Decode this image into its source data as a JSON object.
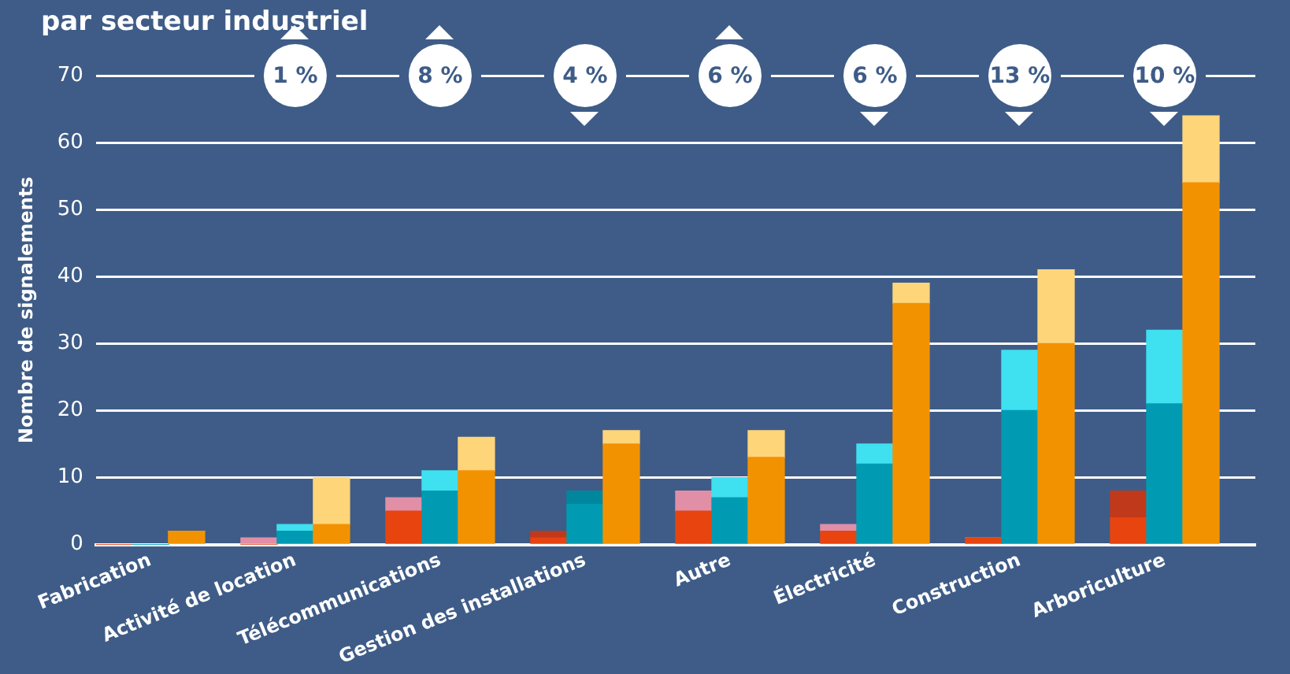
{
  "chart_data": {
    "type": "bar",
    "title": "par secteur industriel",
    "ylabel": "Nombre de signalements",
    "stacked": true,
    "categories": [
      null,
      "Fabrication",
      null,
      null,
      null,
      "Activité de location",
      null,
      null,
      null,
      "Télécommunications",
      null,
      null,
      null,
      "Gestion des installations",
      null,
      null,
      null,
      "Autre",
      null,
      null,
      null,
      "Électricité",
      null,
      null,
      null,
      "Construction",
      null,
      null,
      null,
      "Arboriculture",
      null,
      null
    ],
    "series": [
      {
        "colors": [
          "#e8440f",
          "#009bb3",
          "#f39200",
          "#3e5c87",
          "#e8440f",
          "#009bb3",
          "#f39200",
          "#3e5c87",
          "#e8440f",
          "#009bb3",
          "#f39200",
          "#3e5c87",
          "#e8440f",
          "#009bb3",
          "#f39200",
          "#3e5c87",
          "#e8440f",
          "#009bb3",
          "#f39200",
          "#3e5c87",
          "#e8440f",
          "#009bb3",
          "#f39200",
          "#3e5c87",
          "#e8440f",
          "#009bb3",
          "#f39200",
          "#3e5c87",
          "#e8440f",
          "#009bb3",
          "#f39200",
          "#3e5c87"
        ],
        "values": [
          0,
          0,
          2,
          null,
          0,
          2,
          3,
          null,
          5,
          8,
          11,
          null,
          1,
          6,
          15,
          null,
          5,
          7,
          13,
          null,
          2,
          12,
          36,
          null,
          1,
          20,
          30,
          null,
          4,
          21,
          54,
          null
        ]
      },
      {
        "colors": [
          "#e08fa6",
          "#3fe0f0",
          "#ffd57a",
          "#3e5c87",
          "#e08fa6",
          "#3fe0f0",
          "#ffd57a",
          "#3e5c87",
          "#e08fa6",
          "#3fe0f0",
          "#ffd57a",
          "#3e5c87",
          "#c0391b",
          "#00879e",
          "#ffd57a",
          "#3e5c87",
          "#e08fa6",
          "#3fe0f0",
          "#ffd57a",
          "#3e5c87",
          "#e08fa6",
          "#3fe0f0",
          "#ffd57a",
          "#3e5c87",
          "#e08fa6",
          "#3fe0f0",
          "#ffd57a",
          "#3e5c87",
          "#c0391b",
          "#3fe0f0",
          "#ffd57a",
          "#3e5c87"
        ],
        "values": [
          0,
          0,
          0,
          null,
          1,
          1,
          7,
          null,
          2,
          3,
          5,
          null,
          1,
          2,
          2,
          null,
          3,
          3,
          4,
          null,
          1,
          3,
          3,
          null,
          0,
          9,
          11,
          null,
          4,
          11,
          10,
          null
        ]
      }
    ],
    "ylim": [
      0,
      70
    ],
    "yticks": [
      0,
      10,
      20,
      30,
      40,
      50,
      60,
      70
    ],
    "grid": "y",
    "legend": false,
    "annotations": [
      {
        "text": "1 %",
        "x": "Activité de location",
        "y": 70
      },
      {
        "text": "8 %",
        "x": "Télécommunications",
        "y": 70
      },
      {
        "text": "4 %",
        "x": "Gestion des installations",
        "y": 70
      },
      {
        "text": "6 %",
        "x": "Autre",
        "y": 70
      },
      {
        "text": "6 %",
        "x": "Électricité",
        "y": 70
      },
      {
        "text": "13 %",
        "x": "Construction",
        "y": 70
      },
      {
        "text": "10 %",
        "x": "Arboriculture",
        "y": 70
      }
    ]
  }
}
